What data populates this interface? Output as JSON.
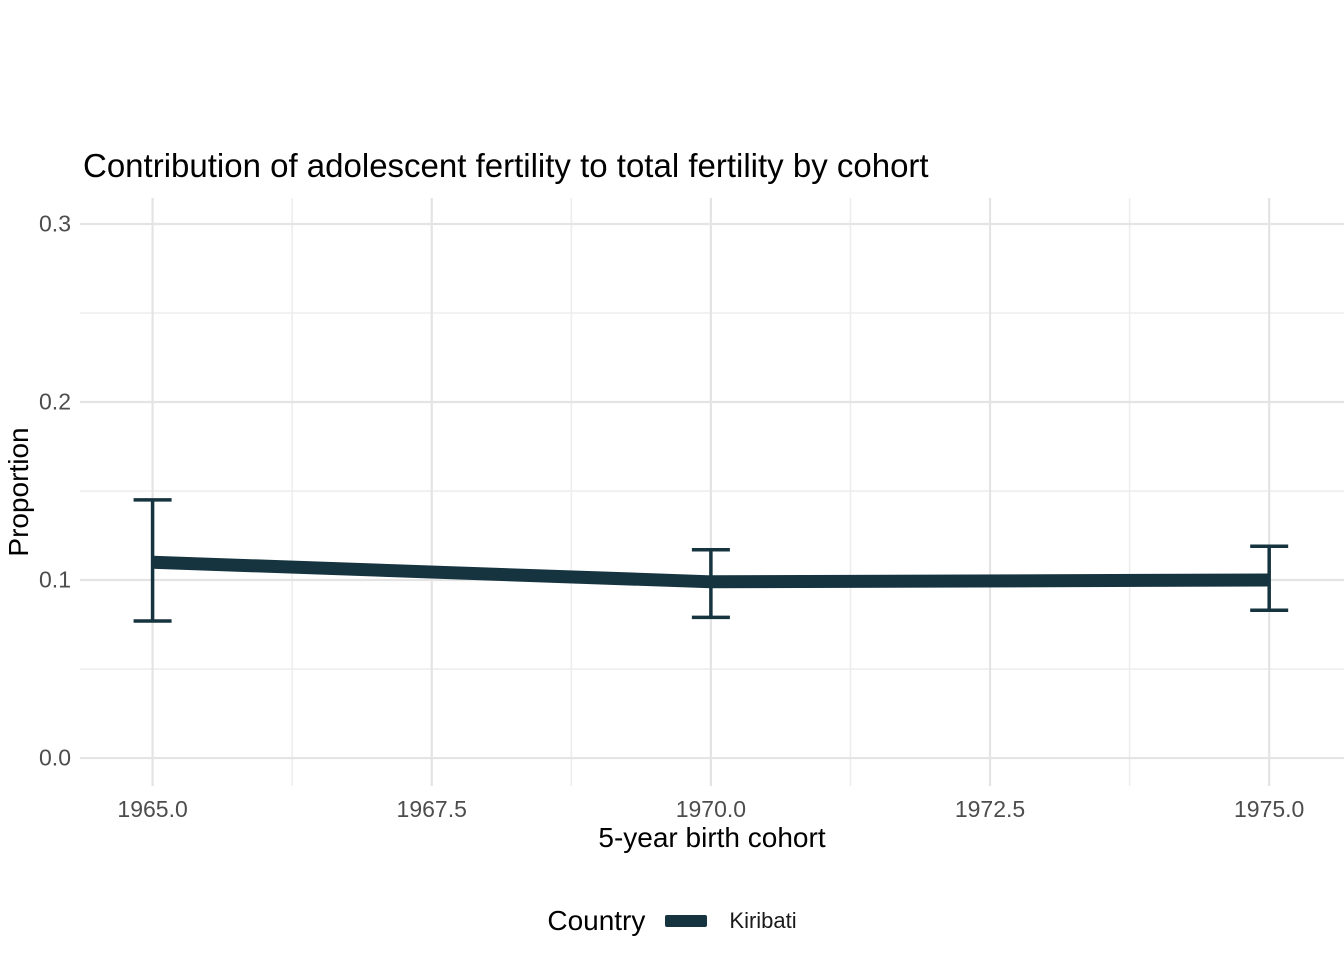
{
  "title": "Contribution of adolescent fertility to total fertility by cohort",
  "chart_data": {
    "type": "line",
    "title": "Contribution of adolescent fertility to total fertility by cohort",
    "xlabel": "5-year birth cohort",
    "ylabel": "Proportion",
    "xlim": [
      1964.35,
      1975.67
    ],
    "ylim": [
      -0.0157,
      0.3146
    ],
    "x_ticks": [
      1965.0,
      1967.5,
      1970.0,
      1972.5,
      1975.0
    ],
    "x_tick_labels": [
      "1965.0",
      "1967.5",
      "1970.0",
      "1972.5",
      "1975.0"
    ],
    "x_minor_ticks": [
      1966.25,
      1968.75,
      1971.25,
      1973.75
    ],
    "y_ticks": [
      0.0,
      0.1,
      0.2,
      0.3
    ],
    "y_tick_labels": [
      "0.0",
      "0.1",
      "0.2",
      "0.3"
    ],
    "y_minor_ticks": [
      0.05,
      0.15,
      0.25
    ],
    "grid": true,
    "legend_position": "bottom",
    "series": [
      {
        "name": "Kiribati",
        "color": "#16343F",
        "x": [
          1965,
          1970,
          1975
        ],
        "y": [
          0.11,
          0.099,
          0.1
        ],
        "ci_low": [
          0.077,
          0.079,
          0.083
        ],
        "ci_high": [
          0.145,
          0.117,
          0.119
        ]
      }
    ]
  },
  "legend": {
    "title": "Country",
    "entries": [
      {
        "label": "Kiribati",
        "color": "#16343F"
      }
    ]
  },
  "colors": {
    "line": "#16343F",
    "grid_major": "#e4e4e4",
    "grid_minor": "#ededed",
    "tick_label": "#4d4d4d",
    "text": "#000000",
    "background": "#ffffff"
  }
}
